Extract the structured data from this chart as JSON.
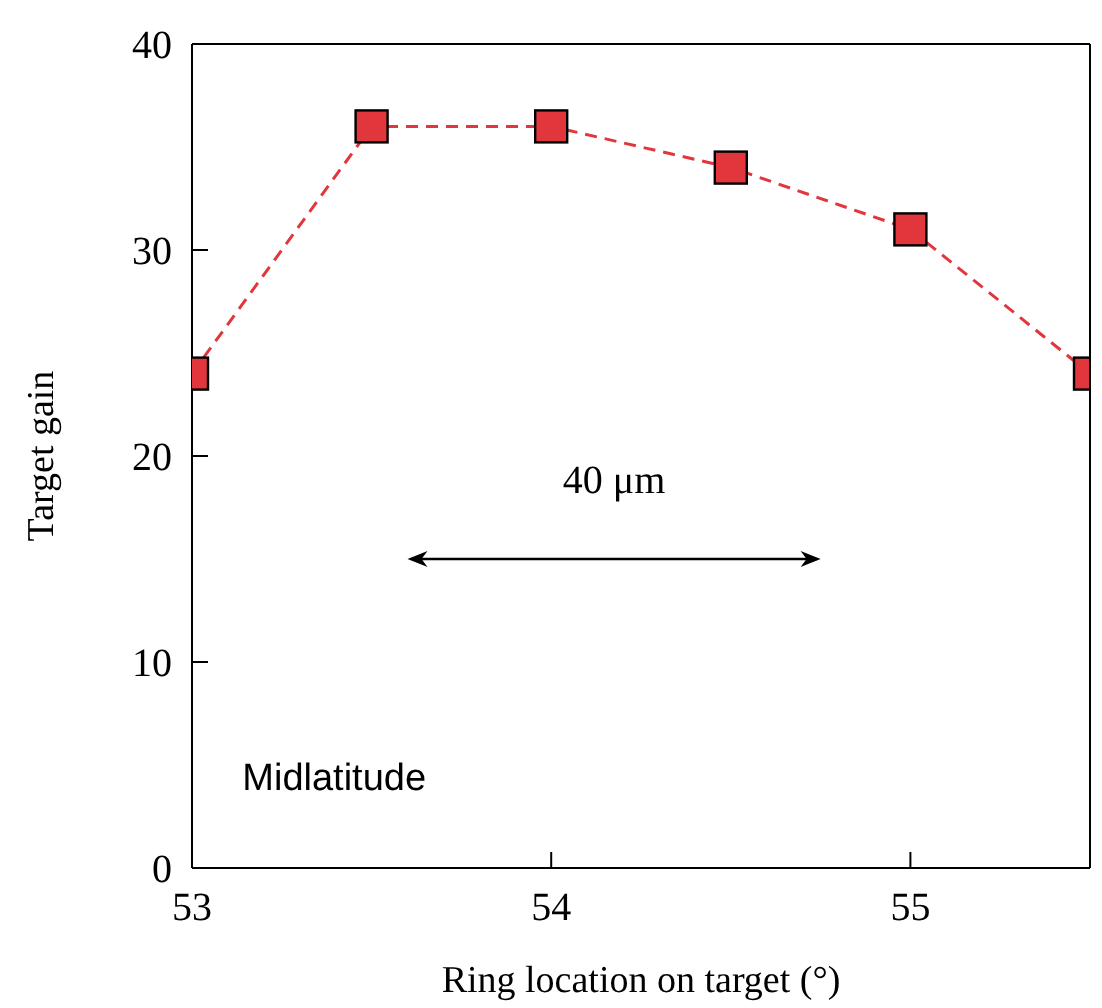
{
  "chart_data": {
    "type": "line",
    "xlabel": "Ring location on target (°)",
    "ylabel": "Target gain",
    "x": [
      53,
      53.5,
      54,
      54.5,
      55,
      55.5
    ],
    "series": [
      {
        "color": "#e0363c",
        "values": [
          24,
          36,
          36,
          34,
          31,
          24
        ]
      }
    ],
    "xlim": [
      53,
      55.5
    ],
    "xticks": [
      53,
      54,
      55
    ],
    "ylim": [
      0,
      40
    ],
    "yticks": [
      0,
      10,
      20,
      30,
      40
    ],
    "marker": "square",
    "line_style": "dashed",
    "grid": false,
    "legend": false,
    "annotations": [
      "40 μm",
      "Midlatitude"
    ]
  }
}
